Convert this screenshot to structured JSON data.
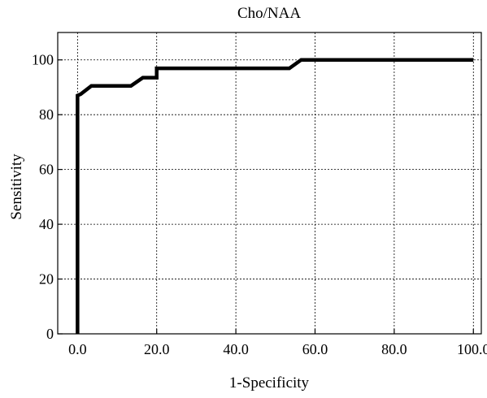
{
  "chart_data": {
    "type": "line",
    "title": "Cho/NAA",
    "xlabel": "1-Specificity",
    "ylabel": "Sensitivity",
    "xlim": [
      -5,
      102
    ],
    "ylim": [
      0,
      110
    ],
    "xticks": [
      0,
      20,
      40,
      60,
      80,
      100
    ],
    "xtick_labels": [
      "0.0",
      "20.0",
      "40.0",
      "60.0",
      "80.0",
      "100.0"
    ],
    "yticks": [
      0,
      20,
      40,
      60,
      80,
      100
    ],
    "ytick_labels": [
      "0",
      "20",
      "40",
      "60",
      "80",
      "100"
    ],
    "grid": true,
    "series": [
      {
        "color": "#000000",
        "x": [
          0,
          0,
          0.8,
          3.5,
          13.5,
          16.5,
          20,
          20,
          53.5,
          56.5,
          100
        ],
        "y": [
          0,
          87,
          87.5,
          90.5,
          90.5,
          93.5,
          93.5,
          96.9,
          96.9,
          100,
          100
        ]
      }
    ]
  }
}
